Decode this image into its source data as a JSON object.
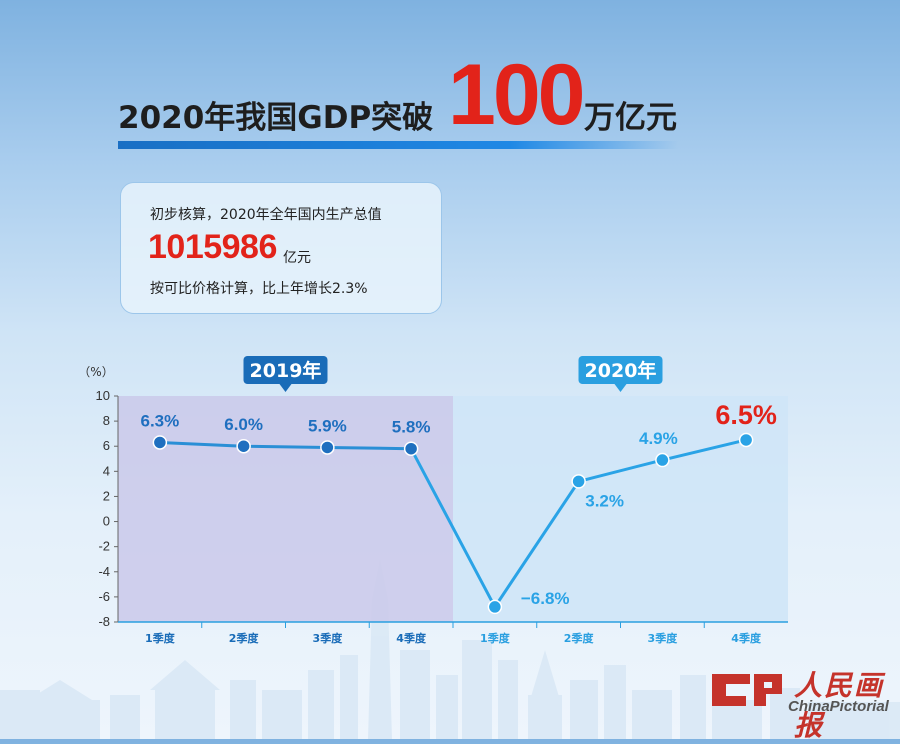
{
  "title": {
    "prefix": "2020年我国GDP突破",
    "number": "100",
    "suffix": "万亿元"
  },
  "info": {
    "line1": "初步核算，2020年全年国内生产总值",
    "value": "1015986",
    "unit": "亿元",
    "line3": "按可比价格计算，比上年增长2.3%"
  },
  "colors": {
    "accent_red": "#e2231a",
    "dark_blue": "#1a6cb8",
    "light_blue": "#2a9fe0",
    "panel_2019": "#cac9ea",
    "panel_2020": "#cfe6f7"
  },
  "logo": {
    "name_cn": "人民画报",
    "name_en": "ChinaPictorial",
    "icon": "china-pictorial-logo-icon"
  },
  "chart_data": {
    "type": "line",
    "ylabel": "（%）",
    "ylim": [
      -8,
      10
    ],
    "yticks": [
      "10",
      "8",
      "6",
      "4",
      "2",
      "0",
      "-2",
      "-4",
      "-6",
      "-8"
    ],
    "groups": [
      {
        "name": "2019年",
        "categories": [
          "1季度",
          "2季度",
          "3季度",
          "4季度"
        ]
      },
      {
        "name": "2020年",
        "categories": [
          "1季度",
          "2季度",
          "3季度",
          "4季度"
        ]
      }
    ],
    "categories": [
      "1季度",
      "2季度",
      "3季度",
      "4季度",
      "1季度",
      "2季度",
      "3季度",
      "4季度"
    ],
    "values": [
      6.3,
      6.0,
      5.9,
      5.8,
      -6.8,
      3.2,
      4.9,
      6.5
    ],
    "labels": [
      "6.3%",
      "6.0%",
      "5.9%",
      "5.8%",
      "−6.8%",
      "3.2%",
      "4.9%",
      "6.5%"
    ]
  }
}
